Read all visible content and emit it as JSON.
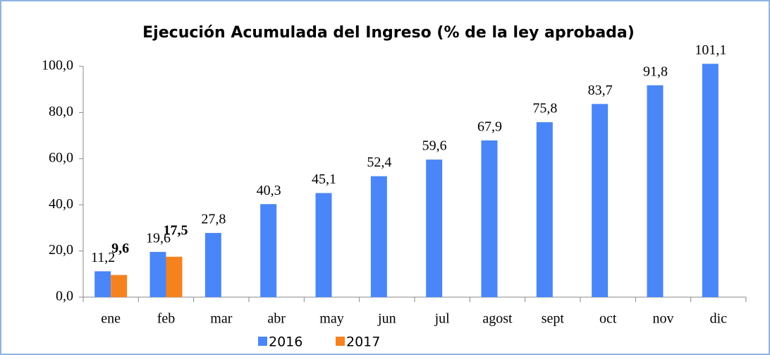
{
  "chart_data": {
    "type": "bar",
    "title": "Ejecución Acumulada del Ingreso (% de la ley aprobada)",
    "categories": [
      "ene",
      "feb",
      "mar",
      "abr",
      "may",
      "jun",
      "jul",
      "agost",
      "sept",
      "oct",
      "nov",
      "dic"
    ],
    "series": [
      {
        "name": "2016",
        "color": "#4a86f7",
        "values": [
          11.2,
          19.6,
          27.8,
          40.3,
          45.1,
          52.4,
          59.6,
          67.9,
          75.8,
          83.7,
          91.8,
          101.1
        ],
        "value_labels": [
          "11,2",
          "19,6",
          "27,8",
          "40,3",
          "45,1",
          "52,4",
          "59,6",
          "67,9",
          "75,8",
          "83,7",
          "91,8",
          "101,1"
        ]
      },
      {
        "name": "2017",
        "color": "#f5821f",
        "values": [
          9.6,
          17.5,
          null,
          null,
          null,
          null,
          null,
          null,
          null,
          null,
          null,
          null
        ],
        "value_labels": [
          "9,6",
          "17,5",
          null,
          null,
          null,
          null,
          null,
          null,
          null,
          null,
          null,
          null
        ]
      }
    ],
    "ylim": [
      0,
      100
    ],
    "yticks": [
      {
        "value": 0,
        "label": "0,0"
      },
      {
        "value": 20,
        "label": "20,0"
      },
      {
        "value": 40,
        "label": "40,0"
      },
      {
        "value": 60,
        "label": "60,0"
      },
      {
        "value": 80,
        "label": "80,0"
      },
      {
        "value": 100,
        "label": "100,0"
      }
    ],
    "grid": false,
    "legend": "bottom"
  }
}
